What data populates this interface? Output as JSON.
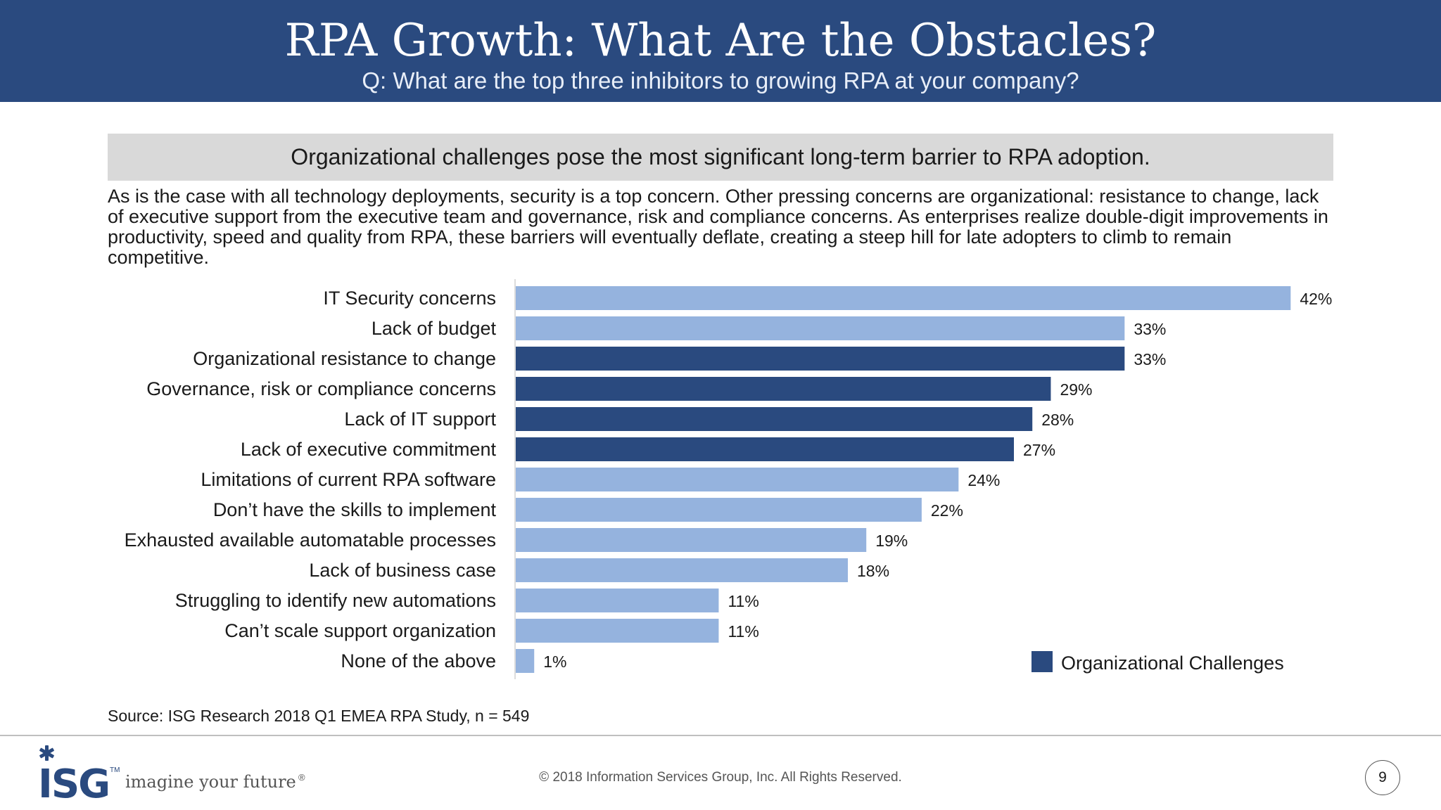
{
  "header": {
    "title": "RPA Growth: What Are the Obstacles?",
    "subtitle": "Q: What are the top three inhibitors to growing RPA at your company?"
  },
  "banner": "Organizational challenges pose the most significant long-term barrier to RPA adoption.",
  "intro": "As is the case with all technology deployments, security is a top concern. Other pressing concerns are organizational: resistance to change, lack of executive support from the executive team and governance, risk and compliance concerns. As enterprises realize double-digit improvements in productivity, speed and quality from RPA, these barriers will eventually deflate, creating a steep hill for late adopters to climb to remain competitive.",
  "chart_data": {
    "type": "bar",
    "orientation": "horizontal",
    "categories": [
      "IT Security concerns",
      "Lack of budget",
      "Organizational resistance to change",
      "Governance, risk or compliance concerns",
      "Lack of IT support",
      "Lack of executive commitment",
      "Limitations of current RPA software",
      "Don’t have the skills to implement",
      "Exhausted available automatable processes",
      "Lack of business case",
      "Struggling to identify new automations",
      "Can’t scale support organization",
      "None of the above"
    ],
    "values": [
      42,
      33,
      33,
      29,
      28,
      27,
      24,
      22,
      19,
      18,
      11,
      11,
      1
    ],
    "value_labels": [
      "42%",
      "33%",
      "33%",
      "29%",
      "28%",
      "27%",
      "24%",
      "22%",
      "19%",
      "18%",
      "11%",
      "11%",
      "1%"
    ],
    "organizational": [
      false,
      false,
      true,
      true,
      true,
      true,
      false,
      false,
      false,
      false,
      false,
      false,
      false
    ],
    "legend": {
      "label": "Organizational Challenges",
      "placement": "bottom-right"
    },
    "colors": {
      "default": "#95b3de",
      "organizational": "#2a4a7f"
    },
    "xlim": [
      0,
      45
    ],
    "grid": false
  },
  "source": "Source: ISG Research 2018 Q1 EMEA RPA Study, n = 549",
  "footer": {
    "logo_text": "ISG",
    "trademark": "TM",
    "tagline": "imagine your future",
    "registered": "®",
    "copyright": "© 2018 Information Services Group, Inc.  All Rights Reserved.",
    "page_number": "9"
  }
}
